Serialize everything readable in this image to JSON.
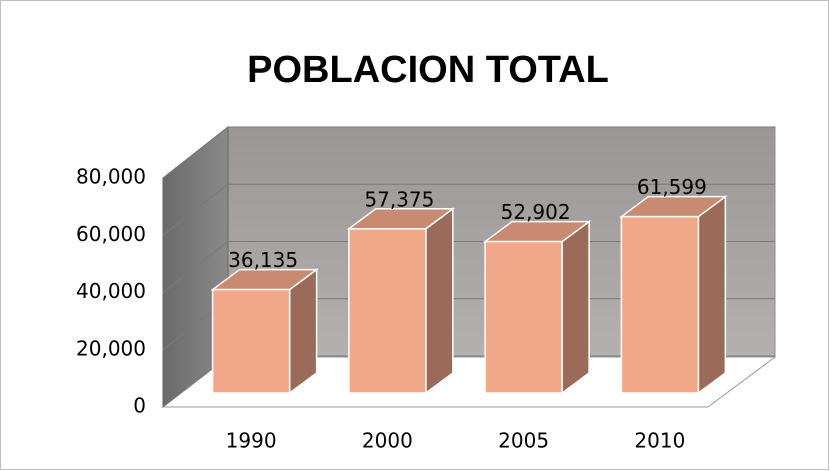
{
  "chart_data": {
    "type": "bar",
    "title": "POBLACION TOTAL",
    "categories": [
      "1990",
      "2000",
      "2005",
      "2010"
    ],
    "values": [
      36135,
      57375,
      52902,
      61599
    ],
    "value_labels": [
      "36,135",
      "57,375",
      "52,902",
      "61,599"
    ],
    "color": "#f0a889",
    "ylim": [
      0,
      80000
    ],
    "yticks": [
      0,
      {
        "value": 20000,
        "label": "20,000"
      },
      {
        "value": 40000,
        "label": "40,000"
      },
      {
        "value": 60000,
        "label": "60,000"
      },
      {
        "value": 80000,
        "label": "80,000"
      }
    ],
    "grid": true
  }
}
